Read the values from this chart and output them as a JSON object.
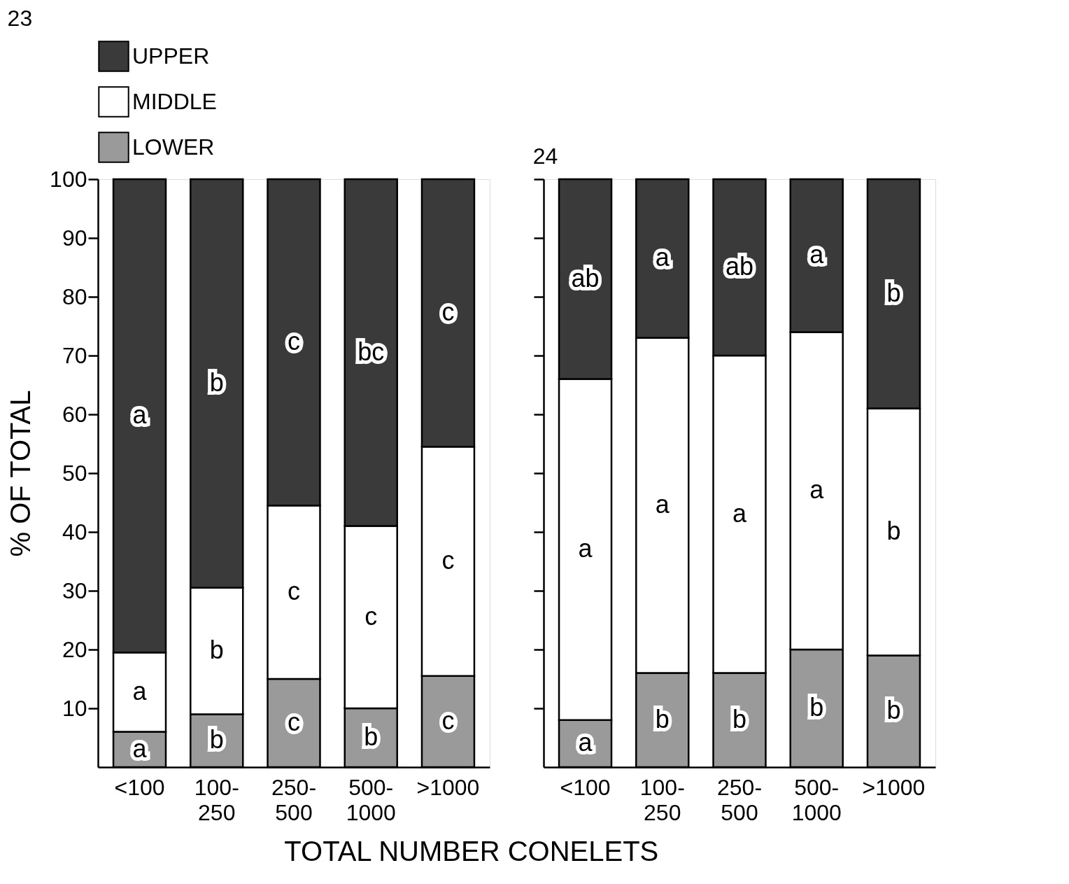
{
  "chart_data": [
    {
      "type": "bar",
      "title": "23",
      "stacked": true,
      "ylabel": "% OF TOTAL",
      "xlabel": "TOTAL NUMBER CONELETS",
      "legend": "top",
      "categories": [
        "<100",
        "100-250",
        "250-500",
        "500-1000",
        ">1000"
      ],
      "ylim": [
        0,
        100
      ],
      "yticks": [
        10,
        20,
        30,
        40,
        50,
        60,
        70,
        80,
        90,
        100
      ],
      "grid": false,
      "series": [
        {
          "name": "LOWER",
          "color": "#9a9a9a",
          "values": [
            6,
            9,
            15,
            10,
            15.5
          ],
          "value_labels": [
            "a",
            "b",
            "c",
            "b",
            "c"
          ]
        },
        {
          "name": "MIDDLE",
          "color": "#ffffff",
          "values": [
            13.5,
            21.5,
            29.5,
            31,
            39
          ],
          "value_labels": [
            "a",
            "b",
            "c",
            "c",
            "c"
          ]
        },
        {
          "name": "UPPER",
          "color": "#3a3a3a",
          "values": [
            80.5,
            69.5,
            55.5,
            59,
            45.5
          ],
          "value_labels": [
            "a",
            "b",
            "c",
            "bc",
            "c"
          ]
        }
      ]
    },
    {
      "type": "bar",
      "title": "24",
      "stacked": true,
      "tick_labels": "x",
      "categories": [
        "<100",
        "100-250",
        "250-500",
        "500-1000",
        ">1000"
      ],
      "ylim": [
        0,
        100
      ],
      "yticks": [
        10,
        20,
        30,
        40,
        50,
        60,
        70,
        80,
        90,
        100
      ],
      "grid": false,
      "series": [
        {
          "color": "#9a9a9a",
          "values": [
            8,
            16,
            16,
            20,
            19
          ],
          "value_labels": [
            "a",
            "b",
            "b",
            "b",
            "b"
          ]
        },
        {
          "color": "#ffffff",
          "values": [
            58,
            57,
            54,
            54,
            42
          ],
          "value_labels": [
            "a",
            "a",
            "a",
            "a",
            "b"
          ]
        },
        {
          "color": "#3a3a3a",
          "values": [
            34,
            27,
            30,
            26,
            39
          ],
          "value_labels": [
            "ab",
            "a",
            "ab",
            "a",
            "b"
          ]
        }
      ]
    }
  ]
}
